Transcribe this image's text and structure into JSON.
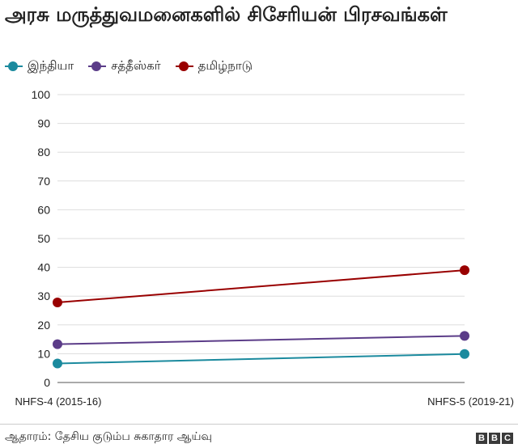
{
  "title": "அரசு மருத்துவமனைகளில் சிசேரியன் பிரசவங்கள்",
  "source": "ஆதாரம்: தேசிய குடும்ப சுகாதார ஆய்வு",
  "logo_text": "BBC",
  "chart_data": {
    "type": "line",
    "title": "அரசு மருத்துவமனைகளில் சிசேரியன் பிரசவங்கள்",
    "xlabel": "",
    "ylabel": "",
    "categories": [
      "NHFS-4 (2015-16)",
      "NHFS-5 (2019-21)"
    ],
    "ylim": [
      0,
      100
    ],
    "yticks": [
      0,
      10,
      20,
      30,
      40,
      50,
      60,
      70,
      80,
      90,
      100
    ],
    "grid": true,
    "legend_position": "top-left",
    "series": [
      {
        "name": "இந்தியா",
        "color": "#1b8a9e",
        "values": [
          6.6,
          9.9
        ]
      },
      {
        "name": "சத்தீஸ்கர்",
        "color": "#5b3c88",
        "values": [
          13.3,
          16.2
        ]
      },
      {
        "name": "தமிழ்நாடு",
        "color": "#990000",
        "values": [
          27.8,
          39.0
        ]
      }
    ]
  }
}
